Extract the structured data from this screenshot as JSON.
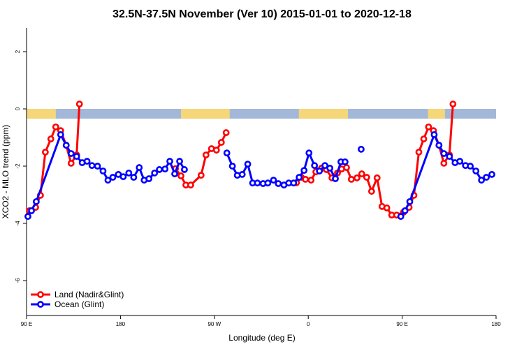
{
  "chart_data": {
    "type": "line",
    "title": "32.5N-37.5N November (Ver 10)   2015-01-01 to 2020-12-18",
    "x_label": "Longitude (deg E)",
    "y_label": "XCO2 - MLO trend (ppm)",
    "xlim": [
      90,
      540
    ],
    "ylim": [
      -7.22,
      2.83
    ],
    "xticks": [
      {
        "value": 90,
        "label": "90 E"
      },
      {
        "value": 180,
        "label": "180"
      },
      {
        "value": 270,
        "label": "90 W"
      },
      {
        "value": 360,
        "label": "0"
      },
      {
        "value": 450,
        "label": "90 E"
      },
      {
        "value": 540,
        "label": "180"
      }
    ],
    "yticks": [
      -6,
      -4,
      -2,
      0,
      2
    ],
    "legend": "bottom-left",
    "land_mask": {
      "land_color": "#f5d77a",
      "ocean_color": "#a3b8d8",
      "band": [
        0,
        -0.34
      ],
      "land_ranges": [
        [
          90,
          118
        ],
        [
          238,
          284.7
        ],
        [
          351,
          398
        ],
        [
          474.7,
          491
        ]
      ]
    },
    "series": [
      {
        "name": "Land (Nadir&Glint)",
        "color": "#ff0000",
        "x": [
          92.7,
          98.7,
          103.3,
          108,
          113.3,
          118,
          122.7,
          128,
          132.7,
          138,
          140.7,
          186,
          232.7,
          238,
          242.7,
          247.3,
          257.3,
          262,
          267.3,
          272,
          276.7,
          281.3,
          315,
          348.7,
          353.3,
          357.3,
          362.7,
          367.3,
          372.7,
          377.3,
          382.7,
          388,
          392,
          396.7,
          401.3,
          406.7,
          411.3,
          416,
          420.7,
          426,
          430.7,
          435.3,
          440,
          444.7,
          451.3,
          456.7,
          461.3,
          466,
          470.7,
          475.3,
          480,
          485.3,
          490,
          495.3,
          498.7
        ],
        "values": [
          -3.56,
          -3.44,
          -3.02,
          -1.51,
          -1.05,
          -0.63,
          -0.76,
          -1.27,
          -1.9,
          -1.61,
          0.17,
          null,
          -2.09,
          -2.34,
          -2.66,
          -2.66,
          -2.32,
          -1.61,
          -1.39,
          -1.44,
          -1.17,
          -0.83,
          null,
          -2.58,
          -2.39,
          -2.46,
          -2.49,
          -2.2,
          -2.07,
          -2.12,
          -2.41,
          -2.24,
          -2.1,
          -2.05,
          -2.46,
          -2.41,
          -2.27,
          -2.39,
          -2.88,
          -2.41,
          -3.41,
          -3.46,
          -3.71,
          -3.71,
          -3.61,
          -3.44,
          -3.02,
          -1.51,
          -1.05,
          -0.63,
          -0.76,
          -1.27,
          -1.9,
          -1.61,
          0.17
        ]
      },
      {
        "name": "Ocean (Glint)",
        "color": "#0000ff",
        "x": [
          91.3,
          94.7,
          99.3,
          122.7,
          128,
          132.7,
          138,
          143.3,
          148,
          152.7,
          158,
          163.3,
          168,
          172.7,
          178,
          182.7,
          188,
          192.7,
          198,
          202.7,
          207.3,
          212.7,
          217.3,
          222.7,
          227.3,
          232,
          236.7,
          241.3,
          262,
          282,
          287.3,
          292,
          296.7,
          302,
          306.7,
          311.3,
          316.7,
          321.3,
          326.7,
          331.3,
          336.7,
          341.3,
          346,
          351.3,
          356,
          360.7,
          366,
          370.7,
          376,
          380.7,
          386,
          391.3,
          395.3,
          402,
          410.7,
          430,
          448.7,
          452.7,
          457.3,
          480.7,
          485.3,
          490,
          495.3,
          500.7,
          505.3,
          510.7,
          515.3,
          520.7,
          526,
          530.7,
          536
        ],
        "values": [
          -3.76,
          -3.56,
          -3.24,
          -0.9,
          -1.27,
          -1.56,
          -1.66,
          -1.88,
          -1.83,
          -1.98,
          -2.0,
          -2.17,
          -2.49,
          -2.39,
          -2.29,
          -2.37,
          -2.24,
          -2.39,
          -2.05,
          -2.49,
          -2.44,
          -2.24,
          -2.12,
          -2.1,
          -1.83,
          -2.27,
          -1.83,
          -2.12,
          null,
          -1.54,
          -2.0,
          -2.32,
          -2.29,
          -1.93,
          -2.59,
          -2.59,
          -2.61,
          -2.59,
          -2.49,
          -2.61,
          -2.66,
          -2.59,
          -2.59,
          -2.39,
          -2.15,
          -1.54,
          -1.98,
          -2.17,
          -1.98,
          -2.07,
          -2.44,
          -1.85,
          -1.85,
          null,
          -1.41,
          null,
          -3.76,
          -3.56,
          -3.24,
          -0.9,
          -1.27,
          -1.56,
          -1.66,
          -1.88,
          -1.83,
          -1.98,
          -2.0,
          -2.17,
          -2.49,
          -2.39,
          -2.29
        ]
      }
    ]
  }
}
